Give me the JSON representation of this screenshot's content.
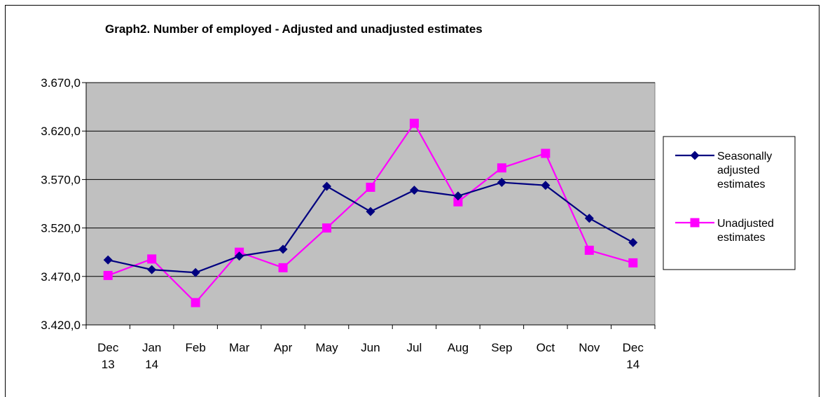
{
  "chart_data": {
    "type": "line",
    "title": "Graph2. Number of employed - Adjusted and unadjusted estimates",
    "xlabel": "",
    "ylabel": "",
    "categories": [
      [
        "Dec",
        "13"
      ],
      [
        "Jan",
        "14"
      ],
      [
        "Feb"
      ],
      [
        "Mar"
      ],
      [
        "Apr"
      ],
      [
        "May"
      ],
      [
        "Jun"
      ],
      [
        "Jul"
      ],
      [
        "Aug"
      ],
      [
        "Sep"
      ],
      [
        "Oct"
      ],
      [
        "Nov"
      ],
      [
        "Dec",
        "14"
      ]
    ],
    "y_ticks": [
      "3.420,0",
      "3.470,0",
      "3.520,0",
      "3.570,0",
      "3.620,0",
      "3.670,0"
    ],
    "ylim": [
      3420,
      3670
    ],
    "grid": "horizontal",
    "plot_background": "#c0c0c0",
    "legend_position": "right",
    "series": [
      {
        "name": [
          "Seasonally",
          "adjusted",
          "estimates"
        ],
        "color": "#000080",
        "marker": "diamond",
        "values": [
          3487,
          3477,
          3474,
          3491,
          3498,
          3563,
          3537,
          3559,
          3553,
          3567,
          3564,
          3530,
          3505
        ]
      },
      {
        "name": [
          "Unadjusted",
          "estimates"
        ],
        "color": "#ff00ff",
        "marker": "square",
        "values": [
          3471,
          3488,
          3443,
          3495,
          3479,
          3520,
          3562,
          3628,
          3547,
          3582,
          3597,
          3497,
          3484
        ]
      }
    ]
  }
}
